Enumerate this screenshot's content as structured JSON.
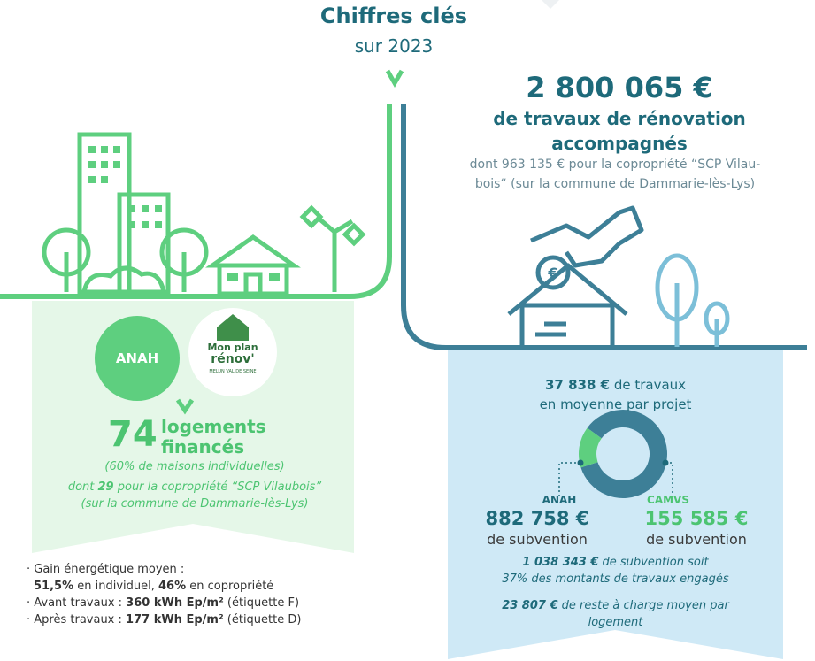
{
  "header": {
    "title": "Chiffres clés",
    "subtitle": "sur 2023"
  },
  "left": {
    "badge": "ANAH",
    "logo": {
      "line1": "Mon plan",
      "line2": "rénov'",
      "tagline": "MELUN VAL DE SEINE"
    },
    "count": "74",
    "count_label": [
      "logements",
      "financés"
    ],
    "note": "(60% de maisons individuelles)",
    "copro": {
      "before": "dont ",
      "count": "29",
      "after": " pour la copropriété “SCP Vilaubois”"
    },
    "commune": "(sur la commune de Dammarie-lès-Lys)",
    "bullets": [
      {
        "label": "Gain énergétique moyen :"
      },
      {
        "v1": "51,5%",
        "t1": " en individuel, ",
        "v2": "46%",
        "t2": " en copropriété"
      },
      {
        "label": "Avant travaux : ",
        "value": "360 kWh Ep/m²",
        "tag": " (étiquette F)"
      },
      {
        "label": "Après travaux : ",
        "value": "177 kWh Ep/m²",
        "tag": " (étiquette D)"
      }
    ]
  },
  "right": {
    "amount": "2 800 065 €",
    "amount_label": [
      "de travaux de rénovation",
      "accompagnés"
    ],
    "detail": [
      "dont 963 135 € pour la copropriété “SCP Vilau-",
      "bois“ (sur la commune de Dammarie-lès-Lys)"
    ],
    "average": {
      "value": "37 838 €",
      "text": " de travaux",
      "line2": "en moyenne par projet"
    },
    "total": {
      "value": "1 038 343 €",
      "text": " de subvention soit",
      "line2": "37% des montants de travaux engagés"
    },
    "remainder": {
      "value": "23 807 €",
      "text": " de reste à charge moyen par",
      "line2": "logement"
    }
  },
  "chart_data": {
    "type": "donut",
    "categories": [
      "ANAH",
      "CAMVS"
    ],
    "values": [
      882758,
      155585
    ],
    "value_labels": [
      "882 758 €",
      "155 585 €"
    ],
    "captions": [
      "de subvention",
      "de subvention"
    ],
    "colors": [
      "#3d7f97",
      "#5ecf7f"
    ]
  }
}
